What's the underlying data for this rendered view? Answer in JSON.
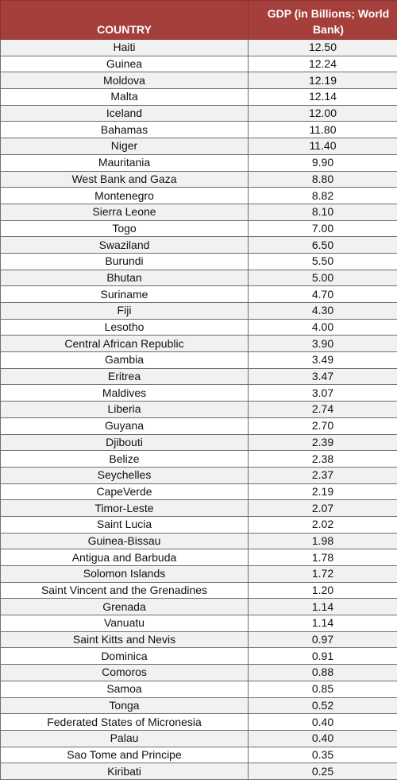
{
  "table": {
    "headers": {
      "country": "COUNTRY",
      "gdp": "GDP (in Billions; World Bank)"
    },
    "rows": [
      {
        "country": "Haiti",
        "gdp": "12.50"
      },
      {
        "country": "Guinea",
        "gdp": "12.24"
      },
      {
        "country": "Moldova",
        "gdp": "12.19"
      },
      {
        "country": "Malta",
        "gdp": "12.14"
      },
      {
        "country": "Iceland",
        "gdp": "12.00"
      },
      {
        "country": "Bahamas",
        "gdp": "11.80"
      },
      {
        "country": "Niger",
        "gdp": "11.40"
      },
      {
        "country": "Mauritania",
        "gdp": "9.90"
      },
      {
        "country": "West Bank and Gaza",
        "gdp": "8.80"
      },
      {
        "country": "Montenegro",
        "gdp": "8.82"
      },
      {
        "country": "Sierra Leone",
        "gdp": "8.10"
      },
      {
        "country": "Togo",
        "gdp": "7.00"
      },
      {
        "country": "Swaziland",
        "gdp": "6.50"
      },
      {
        "country": "Burundi",
        "gdp": "5.50"
      },
      {
        "country": "Bhutan",
        "gdp": "5.00"
      },
      {
        "country": "Suriname",
        "gdp": "4.70"
      },
      {
        "country": "Fiji",
        "gdp": "4.30"
      },
      {
        "country": "Lesotho",
        "gdp": "4.00"
      },
      {
        "country": "Central African Republic",
        "gdp": "3.90"
      },
      {
        "country": "Gambia",
        "gdp": "3.49"
      },
      {
        "country": "Eritrea",
        "gdp": "3.47"
      },
      {
        "country": "Maldives",
        "gdp": "3.07"
      },
      {
        "country": "Liberia",
        "gdp": "2.74"
      },
      {
        "country": "Guyana",
        "gdp": "2.70"
      },
      {
        "country": "Djibouti",
        "gdp": "2.39"
      },
      {
        "country": "Belize",
        "gdp": "2.38"
      },
      {
        "country": "Seychelles",
        "gdp": "2.37"
      },
      {
        "country": "CapeVerde",
        "gdp": "2.19"
      },
      {
        "country": "Timor-Leste",
        "gdp": "2.07"
      },
      {
        "country": "Saint Lucia",
        "gdp": "2.02"
      },
      {
        "country": "Guinea-Bissau",
        "gdp": "1.98"
      },
      {
        "country": "Antigua and Barbuda",
        "gdp": "1.78"
      },
      {
        "country": "Solomon Islands",
        "gdp": "1.72"
      },
      {
        "country": "Saint Vincent and the Grenadines",
        "gdp": "1.20"
      },
      {
        "country": "Grenada",
        "gdp": "1.14"
      },
      {
        "country": "Vanuatu",
        "gdp": "1.14"
      },
      {
        "country": "Saint Kitts and Nevis",
        "gdp": "0.97"
      },
      {
        "country": "Dominica",
        "gdp": "0.91"
      },
      {
        "country": "Comoros",
        "gdp": "0.88"
      },
      {
        "country": "Samoa",
        "gdp": "0.85"
      },
      {
        "country": "Tonga",
        "gdp": "0.52"
      },
      {
        "country": "Federated States of Micronesia",
        "gdp": "0.40"
      },
      {
        "country": "Palau",
        "gdp": "0.40"
      },
      {
        "country": "Sao Tome and Principe",
        "gdp": "0.35"
      },
      {
        "country": "Kiribati",
        "gdp": "0.25"
      }
    ]
  },
  "colors": {
    "header_bg": "#a43f3c",
    "header_text": "#ffffff",
    "row_alt_bg": "#f1f1f1",
    "border": "#6e6e6e"
  }
}
